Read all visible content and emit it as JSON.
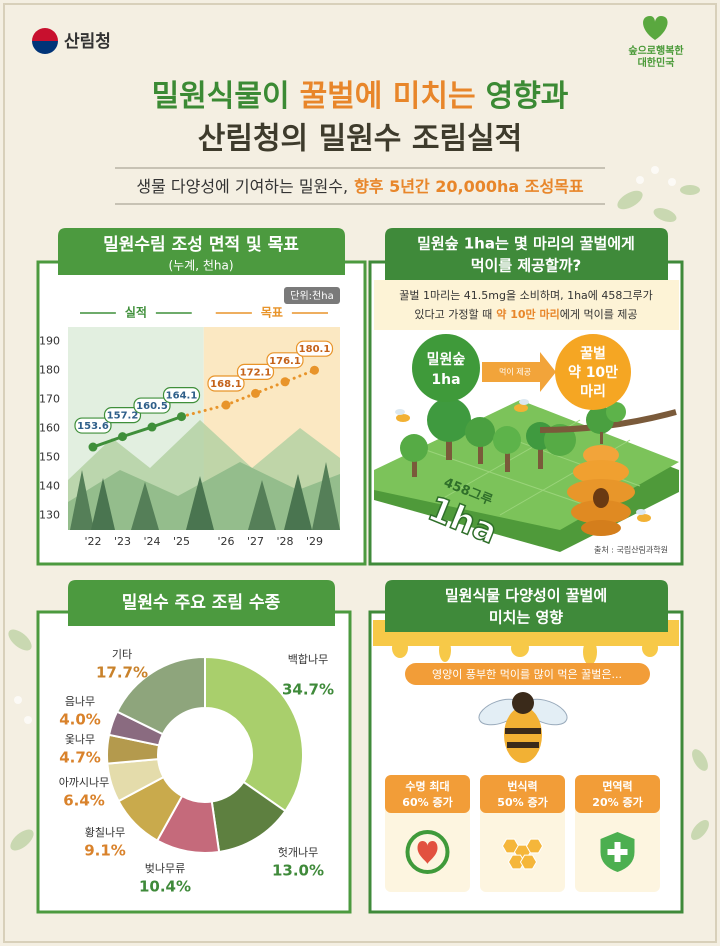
{
  "header": {
    "logo": "산림청",
    "slogan": [
      "숲으로행복한",
      "대한민국"
    ]
  },
  "title": {
    "line1": [
      "밀원식물이",
      "꿀벌에 미치는",
      "영향과"
    ],
    "line2": "산림청의 밀원수 조림실적"
  },
  "subtitle": [
    "생물 다양성에 기여하는 밀원수,",
    "향후 5년간 20,000ha 조성목표"
  ],
  "chart_data": [
    {
      "type": "line",
      "title": "밀원수림 조성 면적 및 목표",
      "subtitle": "(누계, 천ha)",
      "unit": "단위:천ha",
      "categories": [
        "'22",
        "'23",
        "'24",
        "'25",
        "'26",
        "'27",
        "'28",
        "'29"
      ],
      "series": [
        {
          "name": "실적",
          "color": "#3f8f3a",
          "line_style": "solid",
          "values": [
            153.6,
            157.2,
            160.5,
            164.1,
            null,
            null,
            null,
            null
          ]
        },
        {
          "name": "목표",
          "color": "#e8942a",
          "line_style": "dotted",
          "values": [
            null,
            null,
            null,
            null,
            168.1,
            172.1,
            176.1,
            180.1
          ]
        }
      ],
      "ylim": [
        125,
        195
      ],
      "yticks": [
        130,
        140,
        150,
        160,
        170,
        180,
        190
      ],
      "grid": false
    },
    {
      "type": "pie",
      "title": "밀원수 주요 조림 수종",
      "donut": true,
      "categories": [
        "백합나무",
        "헛개나무",
        "벚나무류",
        "황칠나무",
        "아까시나무",
        "옻나무",
        "음나무",
        "기타"
      ],
      "values": [
        34.7,
        13.0,
        10.4,
        9.1,
        6.4,
        4.7,
        4.0,
        17.7
      ],
      "value_labels": [
        "34.7%",
        "13.0%",
        "10.4%",
        "9.1%",
        "6.4%",
        "4.7%",
        "4.0%",
        "17.7%"
      ],
      "colors": [
        "#a9cf6c",
        "#5e8040",
        "#c56a7b",
        "#c9aa4c",
        "#e4dcab",
        "#b49a4d",
        "#8a6b80",
        "#8ea57c"
      ]
    }
  ],
  "feed": {
    "title": [
      "밀원숲 1ha는 몇 마리의 꿀벌에게",
      "먹이를 제공할까?"
    ],
    "note": [
      "꿀벌 1마리는 41.5mg을 소비하며, 1ha에 458그루가",
      "있다고 가정할 때",
      "약 10만 마리",
      "에게 먹이를 제공"
    ],
    "forest": [
      "밀원숲",
      "1ha"
    ],
    "arrow": "먹이 제공",
    "bees": [
      "꿀벌",
      "약 10만",
      "마리"
    ],
    "trees": "458그루",
    "area": "1ha",
    "source": "출처 : 국립산림과학원"
  },
  "effects": {
    "title": [
      "밀원식물 다양성이 꿀벌에",
      "미치는 영향"
    ],
    "banner": "영양이 풍부한 먹이를 많이 먹은 꿀벌은...",
    "items": [
      {
        "label": "수명 최대",
        "value": "60% 증가"
      },
      {
        "label": "번식력",
        "value": "50% 증가"
      },
      {
        "label": "면역력",
        "value": "20% 증가"
      }
    ]
  }
}
